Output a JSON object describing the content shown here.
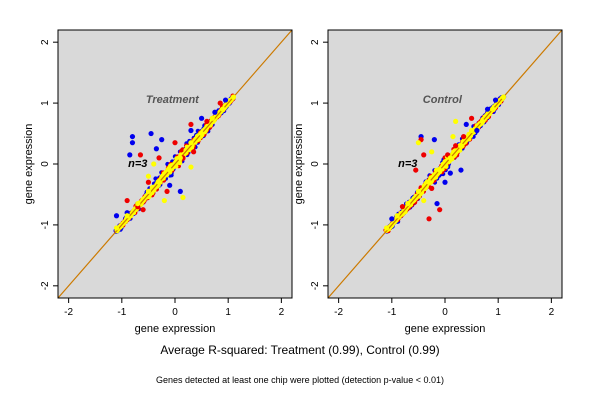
{
  "colors": {
    "panel_bg": "#d9d9d9",
    "diagonal": "#cc7a00",
    "series_blue": "#0000ee",
    "series_red": "#ee0000",
    "series_yellow": "#ffff00"
  },
  "caption": {
    "main": "Average R-squared: Treatment (0.99), Control (0.99)",
    "note": "Genes detected at least one chip were plotted (detection p-value < 0.01)"
  },
  "chart_data": [
    {
      "type": "scatter",
      "title": "Treatment",
      "annotation": "n=3",
      "xlabel": "gene expression",
      "ylabel": "gene expression",
      "xlim": [
        -2.2,
        2.2
      ],
      "ylim": [
        -2.2,
        2.2
      ],
      "xticks": [
        -2,
        -1,
        0,
        1,
        2
      ],
      "yticks": [
        -2,
        -1,
        0,
        1,
        2
      ],
      "reference_line": "y = x",
      "grid": false,
      "series": [
        {
          "color": "blue",
          "points": [
            [
              -0.85,
              0.15
            ],
            [
              -0.8,
              0.45
            ],
            [
              -0.8,
              0.35
            ],
            [
              -0.45,
              0.5
            ],
            [
              -0.35,
              0.25
            ],
            [
              -0.25,
              0.4
            ],
            [
              0.3,
              0.55
            ],
            [
              0.1,
              -0.45
            ],
            [
              -0.1,
              -0.35
            ],
            [
              -1.1,
              -0.85
            ],
            [
              0.95,
              1.05
            ],
            [
              0.5,
              0.75
            ],
            [
              -0.9,
              -0.8
            ],
            [
              0.75,
              0.85
            ]
          ]
        },
        {
          "color": "red",
          "points": [
            [
              -0.65,
              0.15
            ],
            [
              -0.5,
              -0.3
            ],
            [
              -0.3,
              0.1
            ],
            [
              -0.15,
              -0.45
            ],
            [
              0.0,
              0.35
            ],
            [
              -0.7,
              -0.7
            ],
            [
              0.15,
              0.1
            ],
            [
              0.35,
              0.2
            ],
            [
              -0.6,
              -0.75
            ],
            [
              0.3,
              0.65
            ],
            [
              -0.9,
              -0.6
            ],
            [
              0.6,
              0.7
            ],
            [
              0.85,
              1.0
            ]
          ]
        },
        {
          "color": "yellow",
          "points": [
            [
              -1.1,
              -1.05
            ],
            [
              -0.9,
              -0.85
            ],
            [
              -0.7,
              -0.65
            ],
            [
              -0.5,
              -0.45
            ],
            [
              -0.3,
              -0.3
            ],
            [
              -0.1,
              -0.1
            ],
            [
              0.1,
              0.1
            ],
            [
              0.3,
              0.35
            ],
            [
              0.5,
              0.5
            ],
            [
              0.7,
              0.75
            ],
            [
              0.9,
              0.9
            ],
            [
              1.1,
              1.1
            ],
            [
              -0.4,
              0.0
            ],
            [
              -0.2,
              -0.6
            ],
            [
              -0.5,
              -0.2
            ],
            [
              0.3,
              -0.05
            ],
            [
              0.15,
              -0.55
            ]
          ]
        }
      ]
    },
    {
      "type": "scatter",
      "title": "Control",
      "annotation": "n=3",
      "xlabel": "gene expression",
      "ylabel": "gene expression",
      "xlim": [
        -2.2,
        2.2
      ],
      "ylim": [
        -2.2,
        2.2
      ],
      "xticks": [
        -2,
        -1,
        0,
        1,
        2
      ],
      "yticks": [
        -2,
        -1,
        0,
        1,
        2
      ],
      "reference_line": "y = x",
      "grid": false,
      "series": [
        {
          "color": "blue",
          "points": [
            [
              -0.45,
              0.45
            ],
            [
              -0.2,
              0.4
            ],
            [
              0.1,
              -0.15
            ],
            [
              0.3,
              -0.1
            ],
            [
              0.0,
              -0.3
            ],
            [
              -0.15,
              -0.65
            ],
            [
              0.8,
              0.9
            ],
            [
              0.4,
              0.65
            ],
            [
              -1.0,
              -0.9
            ],
            [
              0.95,
              1.05
            ],
            [
              0.6,
              0.55
            ]
          ]
        },
        {
          "color": "red",
          "points": [
            [
              -0.45,
              0.4
            ],
            [
              -0.4,
              0.15
            ],
            [
              -0.25,
              -0.4
            ],
            [
              -0.3,
              -0.9
            ],
            [
              -0.1,
              -0.75
            ],
            [
              0.05,
              0.15
            ],
            [
              -0.8,
              -0.7
            ],
            [
              0.2,
              0.3
            ],
            [
              0.35,
              0.45
            ],
            [
              0.5,
              0.75
            ],
            [
              -0.55,
              -0.1
            ]
          ]
        },
        {
          "color": "yellow",
          "points": [
            [
              -1.1,
              -1.05
            ],
            [
              -0.9,
              -0.85
            ],
            [
              -0.7,
              -0.65
            ],
            [
              -0.5,
              -0.45
            ],
            [
              -0.3,
              -0.3
            ],
            [
              -0.1,
              -0.1
            ],
            [
              0.1,
              0.1
            ],
            [
              0.3,
              0.3
            ],
            [
              0.5,
              0.55
            ],
            [
              0.7,
              0.7
            ],
            [
              0.9,
              0.9
            ],
            [
              1.1,
              1.1
            ],
            [
              -0.5,
              0.35
            ],
            [
              -0.25,
              0.2
            ],
            [
              0.15,
              0.45
            ],
            [
              -0.4,
              -0.6
            ],
            [
              0.2,
              0.7
            ]
          ]
        }
      ]
    }
  ]
}
